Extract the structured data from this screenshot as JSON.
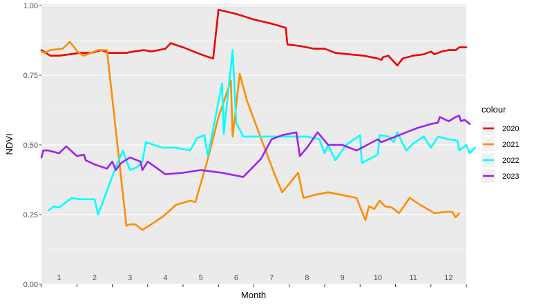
{
  "chart_data": {
    "type": "line",
    "title": "",
    "xlabel": "Month",
    "ylabel": "NDVI",
    "xlim": [
      0.5,
      12.5
    ],
    "ylim": [
      0,
      1
    ],
    "y_ticks": [
      "0.00",
      "0.25",
      "0.50",
      "0.75",
      "1.00"
    ],
    "month_labels": [
      "1",
      "2",
      "3",
      "4",
      "5",
      "6",
      "7",
      "8",
      "9",
      "10",
      "11",
      "12"
    ],
    "grid": true,
    "legend": {
      "title": "colour",
      "position": "right"
    },
    "series": [
      {
        "name": "2020",
        "color": "#EE0000",
        "points": [
          [
            0.5,
            0.84
          ],
          [
            0.75,
            0.82
          ],
          [
            1.0,
            0.82
          ],
          [
            1.3,
            0.825
          ],
          [
            1.6,
            0.83
          ],
          [
            1.9,
            0.83
          ],
          [
            2.2,
            0.84
          ],
          [
            2.4,
            0.83
          ],
          [
            2.6,
            0.83
          ],
          [
            2.9,
            0.83
          ],
          [
            3.1,
            0.835
          ],
          [
            3.4,
            0.84
          ],
          [
            3.6,
            0.835
          ],
          [
            3.8,
            0.84
          ],
          [
            4.0,
            0.845
          ],
          [
            4.15,
            0.865
          ],
          [
            4.5,
            0.85
          ],
          [
            4.8,
            0.835
          ],
          [
            5.1,
            0.82
          ],
          [
            5.35,
            0.81
          ],
          [
            5.5,
            0.985
          ],
          [
            6.0,
            0.97
          ],
          [
            6.5,
            0.95
          ],
          [
            7.0,
            0.935
          ],
          [
            7.4,
            0.92
          ],
          [
            7.45,
            0.86
          ],
          [
            7.8,
            0.855
          ],
          [
            8.2,
            0.845
          ],
          [
            8.5,
            0.845
          ],
          [
            8.8,
            0.83
          ],
          [
            9.2,
            0.825
          ],
          [
            9.6,
            0.82
          ],
          [
            10.0,
            0.81
          ],
          [
            10.1,
            0.805
          ],
          [
            10.15,
            0.815
          ],
          [
            10.3,
            0.82
          ],
          [
            10.55,
            0.785
          ],
          [
            10.7,
            0.81
          ],
          [
            11.0,
            0.82
          ],
          [
            11.3,
            0.825
          ],
          [
            11.5,
            0.835
          ],
          [
            11.6,
            0.825
          ],
          [
            11.8,
            0.835
          ],
          [
            12.0,
            0.84
          ],
          [
            12.2,
            0.84
          ],
          [
            12.3,
            0.85
          ],
          [
            12.5,
            0.85
          ]
        ]
      },
      {
        "name": "2021",
        "color": "#FF8C00",
        "points": [
          [
            0.5,
            0.835
          ],
          [
            0.6,
            0.83
          ],
          [
            0.75,
            0.84
          ],
          [
            1.1,
            0.845
          ],
          [
            1.3,
            0.87
          ],
          [
            1.55,
            0.83
          ],
          [
            1.7,
            0.82
          ],
          [
            1.9,
            0.83
          ],
          [
            2.1,
            0.84
          ],
          [
            2.35,
            0.84
          ],
          [
            2.9,
            0.21
          ],
          [
            3.0,
            0.215
          ],
          [
            3.15,
            0.215
          ],
          [
            3.35,
            0.195
          ],
          [
            3.6,
            0.215
          ],
          [
            3.95,
            0.245
          ],
          [
            4.3,
            0.285
          ],
          [
            4.7,
            0.3
          ],
          [
            4.85,
            0.295
          ],
          [
            5.2,
            0.45
          ],
          [
            5.5,
            0.6
          ],
          [
            5.85,
            0.73
          ],
          [
            5.9,
            0.53
          ],
          [
            6.1,
            0.755
          ],
          [
            6.3,
            0.66
          ],
          [
            6.8,
            0.49
          ],
          [
            7.1,
            0.39
          ],
          [
            7.3,
            0.33
          ],
          [
            7.4,
            0.345
          ],
          [
            7.75,
            0.4
          ],
          [
            7.9,
            0.31
          ],
          [
            8.2,
            0.32
          ],
          [
            8.6,
            0.33
          ],
          [
            9.0,
            0.32
          ],
          [
            9.4,
            0.31
          ],
          [
            9.65,
            0.23
          ],
          [
            9.75,
            0.28
          ],
          [
            9.9,
            0.27
          ],
          [
            10.05,
            0.3
          ],
          [
            10.2,
            0.28
          ],
          [
            10.4,
            0.275
          ],
          [
            10.6,
            0.255
          ],
          [
            10.9,
            0.31
          ],
          [
            11.2,
            0.285
          ],
          [
            11.6,
            0.255
          ],
          [
            11.9,
            0.26
          ],
          [
            12.1,
            0.26
          ],
          [
            12.2,
            0.24
          ],
          [
            12.3,
            0.255
          ]
        ]
      },
      {
        "name": "2022",
        "color": "#00FFFF",
        "points": [
          [
            0.7,
            0.265
          ],
          [
            0.85,
            0.28
          ],
          [
            1.0,
            0.275
          ],
          [
            1.35,
            0.31
          ],
          [
            1.6,
            0.305
          ],
          [
            2.0,
            0.305
          ],
          [
            2.1,
            0.25
          ],
          [
            2.6,
            0.42
          ],
          [
            2.8,
            0.48
          ],
          [
            3.0,
            0.41
          ],
          [
            3.2,
            0.42
          ],
          [
            3.35,
            0.44
          ],
          [
            3.45,
            0.51
          ],
          [
            3.9,
            0.49
          ],
          [
            4.3,
            0.49
          ],
          [
            4.7,
            0.48
          ],
          [
            4.9,
            0.525
          ],
          [
            5.1,
            0.535
          ],
          [
            5.2,
            0.46
          ],
          [
            5.6,
            0.72
          ],
          [
            5.65,
            0.54
          ],
          [
            5.9,
            0.84
          ],
          [
            6.0,
            0.58
          ],
          [
            6.2,
            0.53
          ],
          [
            6.6,
            0.53
          ],
          [
            7.1,
            0.53
          ],
          [
            7.6,
            0.53
          ],
          [
            8.0,
            0.53
          ],
          [
            8.35,
            0.52
          ],
          [
            8.5,
            0.47
          ],
          [
            8.6,
            0.5
          ],
          [
            8.8,
            0.445
          ],
          [
            9.1,
            0.5
          ],
          [
            9.5,
            0.535
          ],
          [
            9.55,
            0.435
          ],
          [
            9.7,
            0.445
          ],
          [
            10.0,
            0.465
          ],
          [
            10.05,
            0.535
          ],
          [
            10.3,
            0.53
          ],
          [
            10.45,
            0.51
          ],
          [
            10.55,
            0.545
          ],
          [
            10.8,
            0.48
          ],
          [
            11.0,
            0.505
          ],
          [
            11.3,
            0.53
          ],
          [
            11.5,
            0.49
          ],
          [
            11.7,
            0.53
          ],
          [
            12.0,
            0.52
          ],
          [
            12.25,
            0.515
          ],
          [
            12.3,
            0.48
          ],
          [
            12.5,
            0.5
          ],
          [
            12.6,
            0.47
          ],
          [
            12.75,
            0.49
          ]
        ]
      },
      {
        "name": "2023",
        "color": "#A020F0",
        "points": [
          [
            0.5,
            0.455
          ],
          [
            0.55,
            0.48
          ],
          [
            0.7,
            0.48
          ],
          [
            1.0,
            0.47
          ],
          [
            1.2,
            0.495
          ],
          [
            1.5,
            0.46
          ],
          [
            1.7,
            0.465
          ],
          [
            1.75,
            0.445
          ],
          [
            2.0,
            0.43
          ],
          [
            2.35,
            0.415
          ],
          [
            2.5,
            0.44
          ],
          [
            2.6,
            0.41
          ],
          [
            2.75,
            0.435
          ],
          [
            3.0,
            0.455
          ],
          [
            3.3,
            0.44
          ],
          [
            3.35,
            0.41
          ],
          [
            3.5,
            0.44
          ],
          [
            4.0,
            0.395
          ],
          [
            4.5,
            0.4
          ],
          [
            5.0,
            0.41
          ],
          [
            5.6,
            0.4
          ],
          [
            6.2,
            0.385
          ],
          [
            6.7,
            0.45
          ],
          [
            7.0,
            0.52
          ],
          [
            7.3,
            0.535
          ],
          [
            7.7,
            0.545
          ],
          [
            7.8,
            0.46
          ],
          [
            8.0,
            0.49
          ],
          [
            8.3,
            0.545
          ],
          [
            8.6,
            0.5
          ],
          [
            9.0,
            0.5
          ],
          [
            9.4,
            0.48
          ],
          [
            9.7,
            0.5
          ],
          [
            10.0,
            0.52
          ],
          [
            10.1,
            0.51
          ],
          [
            10.5,
            0.53
          ],
          [
            10.8,
            0.545
          ],
          [
            11.1,
            0.56
          ],
          [
            11.5,
            0.575
          ],
          [
            11.7,
            0.58
          ],
          [
            11.75,
            0.6
          ],
          [
            12.0,
            0.585
          ],
          [
            12.2,
            0.6
          ],
          [
            12.3,
            0.605
          ],
          [
            12.35,
            0.585
          ],
          [
            12.45,
            0.59
          ],
          [
            12.6,
            0.575
          ]
        ]
      }
    ]
  }
}
